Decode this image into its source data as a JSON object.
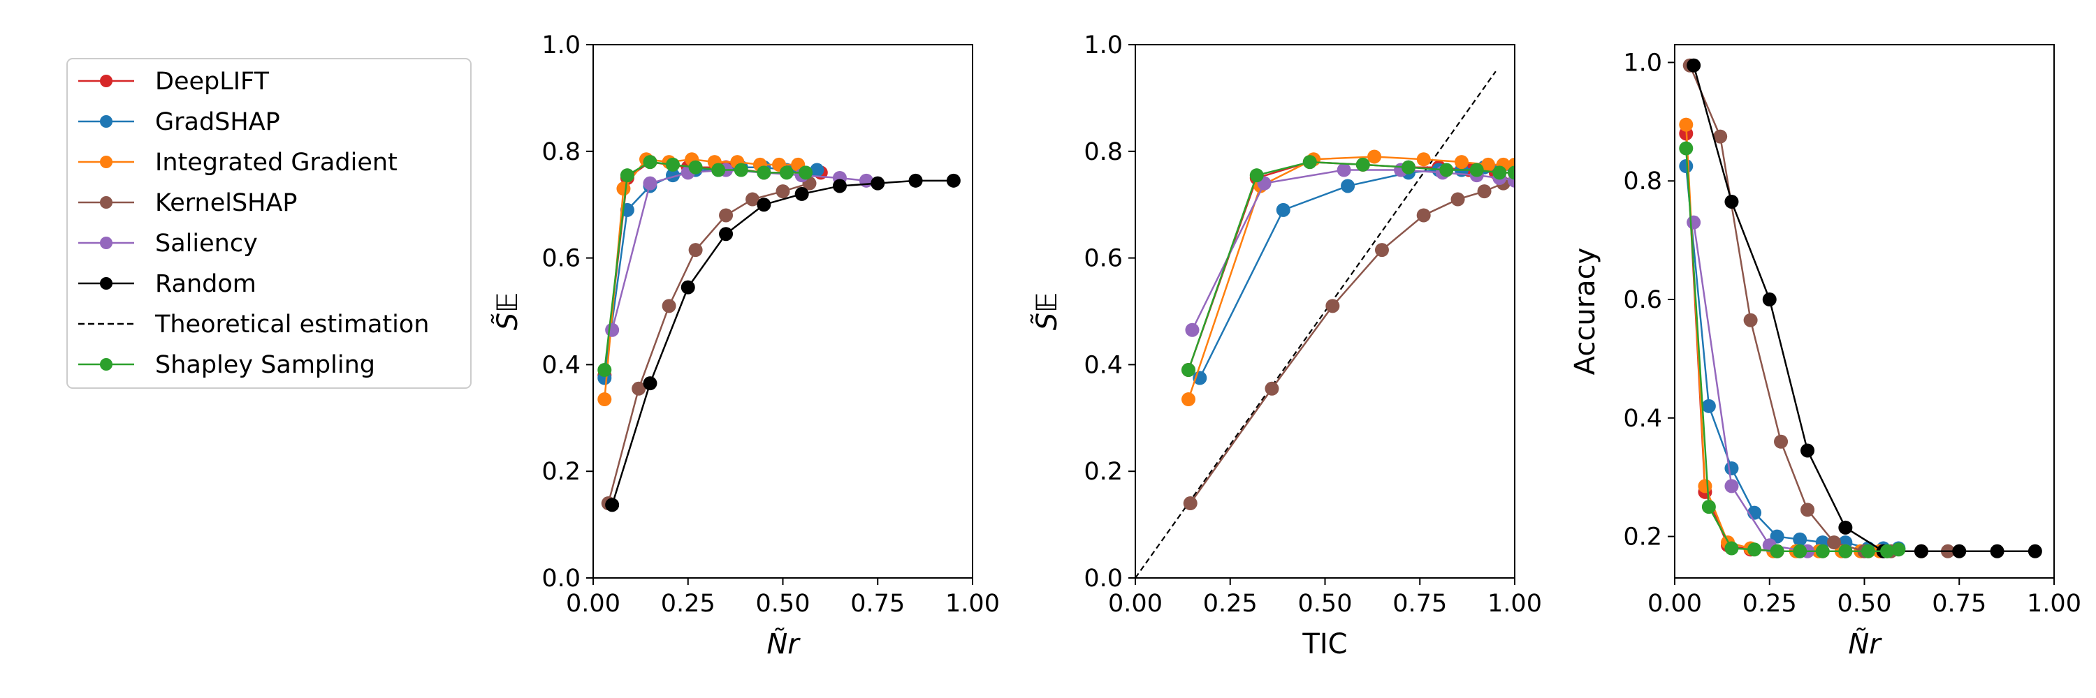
{
  "legend": {
    "items": [
      {
        "label": "DeepLIFT",
        "color": "#d62728",
        "style": "marker-line"
      },
      {
        "label": "GradSHAP",
        "color": "#1f77b4",
        "style": "marker-line"
      },
      {
        "label": "Integrated Gradient",
        "color": "#ff7f0e",
        "style": "marker-line"
      },
      {
        "label": "KernelSHAP",
        "color": "#8c564b",
        "style": "marker-line"
      },
      {
        "label": "Saliency",
        "color": "#9467bd",
        "style": "marker-line"
      },
      {
        "label": "Random",
        "color": "#000000",
        "style": "marker-line"
      },
      {
        "label": "Theoretical estimation",
        "color": "#000000",
        "style": "dashed"
      },
      {
        "label": "Shapley Sampling",
        "color": "#2ca02c",
        "style": "marker-line"
      }
    ]
  },
  "chart_data": [
    {
      "type": "line",
      "title": "",
      "xlabel": "Ñr",
      "ylabel": "S̃𝔼",
      "xlim": [
        0,
        1
      ],
      "ylim": [
        0,
        1
      ],
      "xticks": [
        "0.00",
        "0.25",
        "0.50",
        "0.75",
        "1.00"
      ],
      "yticks": [
        "0.0",
        "0.2",
        "0.4",
        "0.6",
        "0.8",
        "1.0"
      ],
      "series": [
        {
          "name": "DeepLIFT",
          "color": "#d62728",
          "points": [
            [
              0.03,
              0.38
            ],
            [
              0.09,
              0.75
            ],
            [
              0.15,
              0.78
            ],
            [
              0.25,
              0.77
            ],
            [
              0.35,
              0.77
            ],
            [
              0.45,
              0.76
            ],
            [
              0.55,
              0.76
            ],
            [
              0.6,
              0.76
            ]
          ]
        },
        {
          "name": "GradSHAP",
          "color": "#1f77b4",
          "points": [
            [
              0.03,
              0.375
            ],
            [
              0.09,
              0.69
            ],
            [
              0.15,
              0.735
            ],
            [
              0.21,
              0.755
            ],
            [
              0.27,
              0.765
            ],
            [
              0.33,
              0.765
            ],
            [
              0.39,
              0.77
            ],
            [
              0.45,
              0.77
            ],
            [
              0.51,
              0.765
            ],
            [
              0.56,
              0.76
            ],
            [
              0.59,
              0.765
            ]
          ]
        },
        {
          "name": "Integrated Gradient",
          "color": "#ff7f0e",
          "points": [
            [
              0.03,
              0.335
            ],
            [
              0.08,
              0.73
            ],
            [
              0.14,
              0.785
            ],
            [
              0.2,
              0.78
            ],
            [
              0.26,
              0.785
            ],
            [
              0.32,
              0.78
            ],
            [
              0.38,
              0.78
            ],
            [
              0.44,
              0.775
            ],
            [
              0.49,
              0.775
            ],
            [
              0.54,
              0.775
            ]
          ]
        },
        {
          "name": "KernelSHAP",
          "color": "#8c564b",
          "points": [
            [
              0.04,
              0.14
            ],
            [
              0.12,
              0.355
            ],
            [
              0.2,
              0.51
            ],
            [
              0.27,
              0.615
            ],
            [
              0.35,
              0.68
            ],
            [
              0.42,
              0.71
            ],
            [
              0.5,
              0.725
            ],
            [
              0.57,
              0.74
            ]
          ]
        },
        {
          "name": "Saliency",
          "color": "#9467bd",
          "points": [
            [
              0.05,
              0.465
            ],
            [
              0.15,
              0.74
            ],
            [
              0.25,
              0.76
            ],
            [
              0.35,
              0.765
            ],
            [
              0.45,
              0.76
            ],
            [
              0.55,
              0.755
            ],
            [
              0.65,
              0.75
            ],
            [
              0.72,
              0.745
            ]
          ]
        },
        {
          "name": "Random",
          "color": "#000000",
          "points": [
            [
              0.05,
              0.137
            ],
            [
              0.15,
              0.365
            ],
            [
              0.25,
              0.545
            ],
            [
              0.35,
              0.645
            ],
            [
              0.45,
              0.7
            ],
            [
              0.55,
              0.72
            ],
            [
              0.65,
              0.735
            ],
            [
              0.75,
              0.74
            ],
            [
              0.85,
              0.745
            ],
            [
              0.95,
              0.745
            ]
          ]
        },
        {
          "name": "Shapley Sampling",
          "color": "#2ca02c",
          "points": [
            [
              0.03,
              0.39
            ],
            [
              0.09,
              0.755
            ],
            [
              0.15,
              0.78
            ],
            [
              0.21,
              0.775
            ],
            [
              0.27,
              0.77
            ],
            [
              0.33,
              0.765
            ],
            [
              0.39,
              0.765
            ],
            [
              0.45,
              0.76
            ],
            [
              0.51,
              0.76
            ],
            [
              0.56,
              0.76
            ]
          ]
        }
      ]
    },
    {
      "type": "line",
      "title": "",
      "xlabel": "TIC",
      "ylabel": "S̃𝔼",
      "xlim": [
        0,
        1
      ],
      "ylim": [
        0,
        1
      ],
      "xticks": [
        "0.00",
        "0.25",
        "0.50",
        "0.75",
        "1.00"
      ],
      "yticks": [
        "0.0",
        "0.2",
        "0.4",
        "0.6",
        "0.8",
        "1.0"
      ],
      "reference_line": {
        "name": "Theoretical estimation",
        "points": [
          [
            0,
            0
          ],
          [
            0.95,
            0.95
          ]
        ]
      },
      "series": [
        {
          "name": "DeepLIFT",
          "color": "#d62728",
          "points": [
            [
              0.14,
              0.39
            ],
            [
              0.32,
              0.75
            ],
            [
              0.46,
              0.78
            ],
            [
              0.6,
              0.775
            ],
            [
              0.72,
              0.77
            ],
            [
              0.8,
              0.77
            ],
            [
              0.88,
              0.765
            ],
            [
              0.95,
              0.76
            ],
            [
              1.0,
              0.76
            ]
          ]
        },
        {
          "name": "GradSHAP",
          "color": "#1f77b4",
          "points": [
            [
              0.17,
              0.375
            ],
            [
              0.39,
              0.69
            ],
            [
              0.56,
              0.735
            ],
            [
              0.72,
              0.76
            ],
            [
              0.8,
              0.765
            ],
            [
              0.86,
              0.765
            ],
            [
              0.92,
              0.77
            ],
            [
              0.96,
              0.765
            ],
            [
              1.0,
              0.765
            ]
          ]
        },
        {
          "name": "Integrated Gradient",
          "color": "#ff7f0e",
          "points": [
            [
              0.14,
              0.335
            ],
            [
              0.33,
              0.735
            ],
            [
              0.47,
              0.785
            ],
            [
              0.63,
              0.79
            ],
            [
              0.76,
              0.785
            ],
            [
              0.86,
              0.78
            ],
            [
              0.93,
              0.775
            ],
            [
              0.97,
              0.775
            ],
            [
              1.0,
              0.775
            ]
          ]
        },
        {
          "name": "KernelSHAP",
          "color": "#8c564b",
          "points": [
            [
              0.145,
              0.14
            ],
            [
              0.36,
              0.355
            ],
            [
              0.52,
              0.51
            ],
            [
              0.65,
              0.615
            ],
            [
              0.76,
              0.68
            ],
            [
              0.85,
              0.71
            ],
            [
              0.92,
              0.725
            ],
            [
              0.97,
              0.74
            ]
          ]
        },
        {
          "name": "Saliency",
          "color": "#9467bd",
          "points": [
            [
              0.15,
              0.465
            ],
            [
              0.34,
              0.74
            ],
            [
              0.55,
              0.765
            ],
            [
              0.7,
              0.765
            ],
            [
              0.81,
              0.76
            ],
            [
              0.9,
              0.755
            ],
            [
              0.96,
              0.75
            ],
            [
              1.0,
              0.745
            ]
          ]
        },
        {
          "name": "Shapley Sampling",
          "color": "#2ca02c",
          "points": [
            [
              0.14,
              0.39
            ],
            [
              0.32,
              0.755
            ],
            [
              0.46,
              0.78
            ],
            [
              0.6,
              0.775
            ],
            [
              0.72,
              0.77
            ],
            [
              0.82,
              0.765
            ],
            [
              0.9,
              0.765
            ],
            [
              0.96,
              0.76
            ],
            [
              1.0,
              0.76
            ]
          ]
        }
      ]
    },
    {
      "type": "line",
      "title": "",
      "xlabel": "Ñr",
      "ylabel": "Accuracy",
      "xlim": [
        0,
        1
      ],
      "ylim": [
        0.13,
        1.03
      ],
      "xticks": [
        "0.00",
        "0.25",
        "0.50",
        "0.75",
        "1.00"
      ],
      "yticks": [
        "0.2",
        "0.4",
        "0.6",
        "0.8",
        "1.0"
      ],
      "ytick_values": [
        0.2,
        0.4,
        0.6,
        0.8,
        1.0
      ],
      "series": [
        {
          "name": "DeepLIFT",
          "color": "#d62728",
          "points": [
            [
              0.03,
              0.88
            ],
            [
              0.08,
              0.275
            ],
            [
              0.14,
              0.185
            ],
            [
              0.2,
              0.178
            ],
            [
              0.27,
              0.175
            ],
            [
              0.33,
              0.175
            ],
            [
              0.39,
              0.175
            ],
            [
              0.45,
              0.175
            ],
            [
              0.51,
              0.175
            ],
            [
              0.56,
              0.175
            ]
          ]
        },
        {
          "name": "GradSHAP",
          "color": "#1f77b4",
          "points": [
            [
              0.03,
              0.825
            ],
            [
              0.09,
              0.42
            ],
            [
              0.15,
              0.315
            ],
            [
              0.21,
              0.24
            ],
            [
              0.27,
              0.2
            ],
            [
              0.33,
              0.195
            ],
            [
              0.39,
              0.19
            ],
            [
              0.45,
              0.19
            ],
            [
              0.51,
              0.18
            ],
            [
              0.55,
              0.18
            ],
            [
              0.59,
              0.18
            ]
          ]
        },
        {
          "name": "Integrated Gradient",
          "color": "#ff7f0e",
          "points": [
            [
              0.03,
              0.895
            ],
            [
              0.08,
              0.285
            ],
            [
              0.14,
              0.19
            ],
            [
              0.2,
              0.18
            ],
            [
              0.26,
              0.175
            ],
            [
              0.32,
              0.175
            ],
            [
              0.38,
              0.175
            ],
            [
              0.44,
              0.175
            ],
            [
              0.49,
              0.175
            ],
            [
              0.54,
              0.175
            ]
          ]
        },
        {
          "name": "KernelSHAP",
          "color": "#8c564b",
          "points": [
            [
              0.04,
              0.995
            ],
            [
              0.12,
              0.875
            ],
            [
              0.2,
              0.565
            ],
            [
              0.28,
              0.36
            ],
            [
              0.35,
              0.245
            ],
            [
              0.42,
              0.19
            ],
            [
              0.5,
              0.175
            ],
            [
              0.57,
              0.175
            ],
            [
              0.65,
              0.175
            ],
            [
              0.72,
              0.175
            ]
          ]
        },
        {
          "name": "Saliency",
          "color": "#9467bd",
          "points": [
            [
              0.05,
              0.73
            ],
            [
              0.15,
              0.285
            ],
            [
              0.25,
              0.185
            ],
            [
              0.35,
              0.175
            ],
            [
              0.45,
              0.175
            ],
            [
              0.55,
              0.175
            ]
          ]
        },
        {
          "name": "Random",
          "color": "#000000",
          "points": [
            [
              0.05,
              0.995
            ],
            [
              0.15,
              0.765
            ],
            [
              0.25,
              0.6
            ],
            [
              0.35,
              0.345
            ],
            [
              0.45,
              0.215
            ],
            [
              0.55,
              0.175
            ],
            [
              0.65,
              0.175
            ],
            [
              0.75,
              0.175
            ],
            [
              0.85,
              0.175
            ],
            [
              0.95,
              0.175
            ]
          ]
        },
        {
          "name": "Shapley Sampling",
          "color": "#2ca02c",
          "points": [
            [
              0.03,
              0.855
            ],
            [
              0.09,
              0.25
            ],
            [
              0.15,
              0.18
            ],
            [
              0.21,
              0.178
            ],
            [
              0.27,
              0.175
            ],
            [
              0.33,
              0.175
            ],
            [
              0.39,
              0.175
            ],
            [
              0.45,
              0.175
            ],
            [
              0.51,
              0.175
            ],
            [
              0.56,
              0.175
            ],
            [
              0.59,
              0.178
            ]
          ]
        }
      ]
    }
  ]
}
